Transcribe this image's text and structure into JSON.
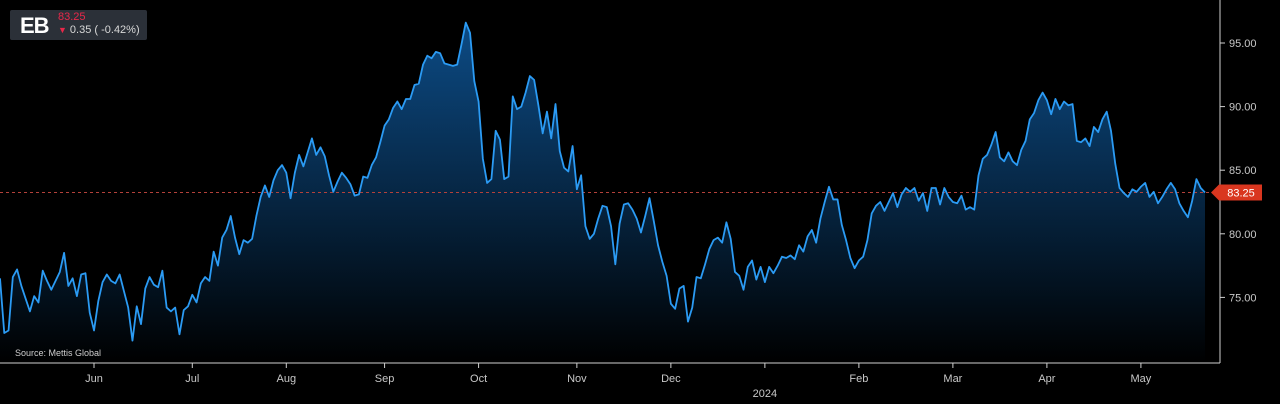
{
  "quote": {
    "ticker": "EB",
    "price": "83.25",
    "change": "0.35 ( -0.42%)",
    "direction_icon": "arrow-down-icon"
  },
  "source": "Source: Mettis Global",
  "colors": {
    "line": "#2b9bf4",
    "fill_top": "#0d4f8c",
    "fill_bottom": "#000000",
    "ref_line": "#b3413a",
    "last_tag": "#d9361f",
    "down": "#e8284a"
  },
  "chart_data": {
    "type": "area",
    "title": "",
    "xlabel": "",
    "ylabel": "",
    "ylim": [
      70.5,
      98
    ],
    "y_ticks": [
      75,
      80,
      85,
      90,
      95
    ],
    "y_tick_labels": [
      "75.00",
      "80.00",
      "85.00",
      "90.00",
      "95.00"
    ],
    "y_axis_position": "right",
    "x_ticks": [
      {
        "i": 22,
        "label": "Jun"
      },
      {
        "i": 45,
        "label": "Jul"
      },
      {
        "i": 67,
        "label": "Aug"
      },
      {
        "i": 90,
        "label": "Sep"
      },
      {
        "i": 112,
        "label": "Oct"
      },
      {
        "i": 135,
        "label": "Nov"
      },
      {
        "i": 157,
        "label": "Dec"
      },
      {
        "i": 201,
        "label": "Feb"
      },
      {
        "i": 223,
        "label": "Mar"
      },
      {
        "i": 245,
        "label": "Apr"
      },
      {
        "i": 267,
        "label": "May"
      }
    ],
    "year_label": {
      "i": 179,
      "label": "2024"
    },
    "last_value": 83.25,
    "last_value_label": "83.25",
    "grid": false,
    "series": [
      {
        "values": [
          76.5,
          72.2,
          72.4,
          76.6,
          77.2,
          75.9,
          74.9,
          73.9,
          75.1,
          74.6,
          77.1,
          76.3,
          75.6,
          76.3,
          77.0,
          78.5,
          75.9,
          76.5,
          75.1,
          76.8,
          76.9,
          73.8,
          72.4,
          74.7,
          76.2,
          76.8,
          76.3,
          76.1,
          76.8,
          75.5,
          74.2,
          71.6,
          74.3,
          72.9,
          75.7,
          76.6,
          76.0,
          75.8,
          77.1,
          74.2,
          73.9,
          74.2,
          72.1,
          74.0,
          74.3,
          75.2,
          74.6,
          76.1,
          76.6,
          76.3,
          78.6,
          77.5,
          79.7,
          80.3,
          81.4,
          79.7,
          78.4,
          79.5,
          79.3,
          79.6,
          81.4,
          82.9,
          83.8,
          82.9,
          84.2,
          85.0,
          85.4,
          84.8,
          82.8,
          84.8,
          86.2,
          85.3,
          86.4,
          87.5,
          86.2,
          86.8,
          86.1,
          84.6,
          83.3,
          84.1,
          84.8,
          84.4,
          83.9,
          83.0,
          83.1,
          84.5,
          84.4,
          85.4,
          86.0,
          87.2,
          88.5,
          89.0,
          89.9,
          90.4,
          89.8,
          90.6,
          90.6,
          91.7,
          91.8,
          93.3,
          94.0,
          93.8,
          94.3,
          94.2,
          93.4,
          93.3,
          93.2,
          93.3,
          94.9,
          96.6,
          95.8,
          92.0,
          90.4,
          85.9,
          84.0,
          84.3,
          88.1,
          87.4,
          84.3,
          84.5,
          90.8,
          89.8,
          90.0,
          91.1,
          92.4,
          92.1,
          90.1,
          87.9,
          89.6,
          87.5,
          90.2,
          86.5,
          85.2,
          84.9,
          86.9,
          83.5,
          84.6,
          80.6,
          79.6,
          80.0,
          81.2,
          82.2,
          82.1,
          80.6,
          77.6,
          80.8,
          82.3,
          82.4,
          81.9,
          81.2,
          80.1,
          81.4,
          82.8,
          81.0,
          79.1,
          77.8,
          76.7,
          74.5,
          74.1,
          75.7,
          75.9,
          73.1,
          74.2,
          76.6,
          76.5,
          77.6,
          78.8,
          79.5,
          79.7,
          79.3,
          80.9,
          79.6,
          77.0,
          76.7,
          75.6,
          77.4,
          77.9,
          76.4,
          77.4,
          76.2,
          77.4,
          76.9,
          77.5,
          78.2,
          78.1,
          78.3,
          78.0,
          79.1,
          78.6,
          79.8,
          80.3,
          79.3,
          81.2,
          82.5,
          83.7,
          82.7,
          82.7,
          80.7,
          79.5,
          78.1,
          77.3,
          77.9,
          78.2,
          79.5,
          81.6,
          82.2,
          82.5,
          81.8,
          82.5,
          83.2,
          82.1,
          83.1,
          83.6,
          83.3,
          83.6,
          82.6,
          83.2,
          81.8,
          83.6,
          83.6,
          82.3,
          83.6,
          82.9,
          82.5,
          82.4,
          83.0,
          81.9,
          82.1,
          81.9,
          84.6,
          85.9,
          86.2,
          87.0,
          88.0,
          86.0,
          85.7,
          86.4,
          85.7,
          85.4,
          86.6,
          87.3,
          89.0,
          89.5,
          90.5,
          91.1,
          90.5,
          89.4,
          90.6,
          89.8,
          90.4,
          90.1,
          90.2,
          87.3,
          87.2,
          87.5,
          86.9,
          88.4,
          88.0,
          89.0,
          89.6,
          88.1,
          85.5,
          83.6,
          83.2,
          82.9,
          83.5,
          83.3,
          83.7,
          84.0,
          82.9,
          83.3,
          82.4,
          82.9,
          83.5,
          84.0,
          83.5,
          82.4,
          81.8,
          81.3,
          82.6,
          84.3,
          83.6,
          83.25
        ]
      }
    ]
  }
}
